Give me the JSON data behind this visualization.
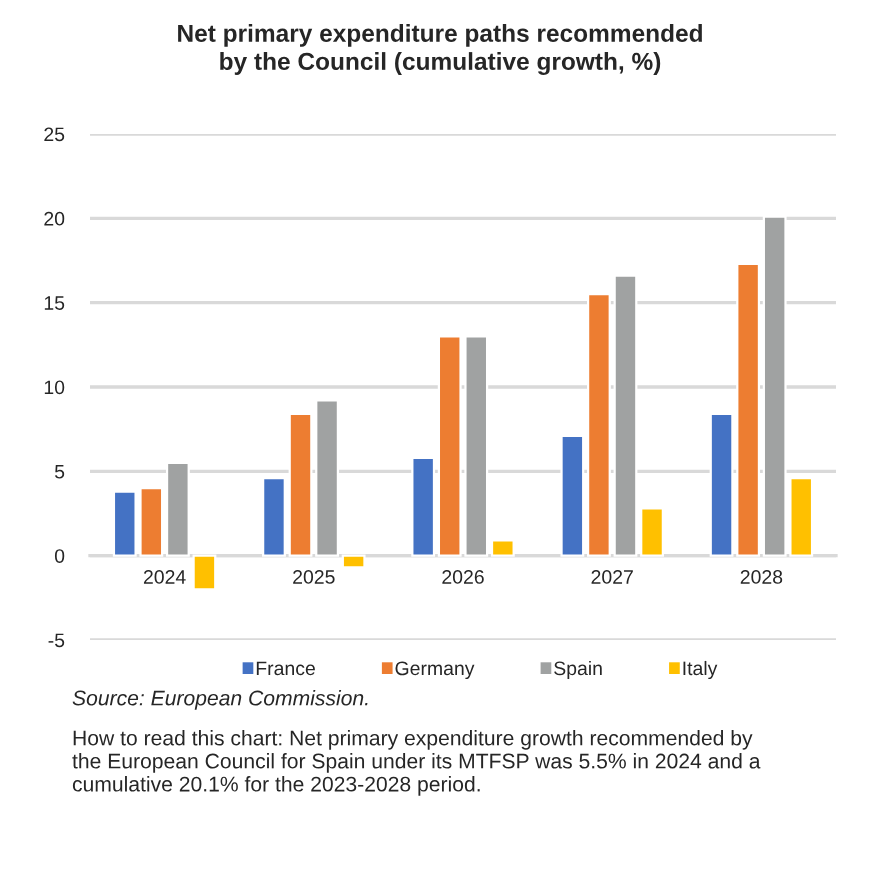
{
  "chart_data": {
    "type": "bar",
    "title": "Net primary expenditure paths recommended\nby the Council (cumulative growth, %)",
    "categories": [
      "2024",
      "2025",
      "2026",
      "2027",
      "2028"
    ],
    "series": [
      {
        "name": "France",
        "color": "#4472c4",
        "values": [
          3.8,
          4.6,
          5.8,
          7.1,
          8.4
        ]
      },
      {
        "name": "Germany",
        "color": "#ed7d31",
        "values": [
          4.0,
          8.4,
          13.0,
          15.5,
          17.3
        ]
      },
      {
        "name": "Spain",
        "color": "#a0a2a2",
        "values": [
          5.5,
          9.2,
          13.0,
          16.6,
          20.1
        ]
      },
      {
        "name": "Italy",
        "color": "#ffc000",
        "values": [
          -2.0,
          -0.7,
          0.9,
          2.8,
          4.6
        ]
      }
    ],
    "ylim": [
      -5,
      25
    ],
    "yticks": [
      -5,
      0,
      5,
      10,
      15,
      20,
      25
    ],
    "grid": "y",
    "legend": "bottom",
    "annotations": [
      "Source: European Commission.",
      "How to read this chart: Net primary expenditure growth recommended by\nthe European Council for Spain under its MTFSP was 5.5% in 2024 and a\ncumulative 20.1% for the 2023-2028 period."
    ]
  }
}
